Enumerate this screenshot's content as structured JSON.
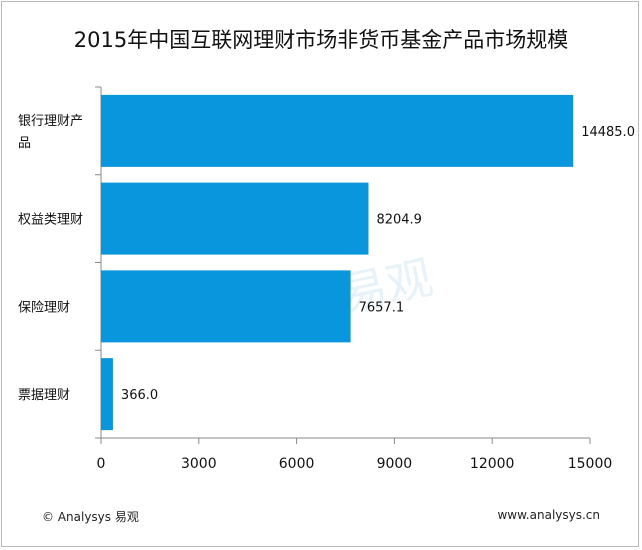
{
  "chart_data": {
    "type": "bar",
    "orientation": "horizontal",
    "title": "2015年中国互联网理财市场非货币基金产品市场规模",
    "categories": [
      "银行理财产品",
      "权益类理财",
      "保险理财",
      "票据理财"
    ],
    "category_lines": [
      [
        "银行理财产",
        "品"
      ],
      [
        "权益类理财"
      ],
      [
        "保险理财"
      ],
      [
        "票据理财"
      ]
    ],
    "values": [
      14485.0,
      8204.9,
      7657.1,
      366.0
    ],
    "value_labels": [
      "14485.0",
      "8204.9",
      "7657.1",
      "366.0"
    ],
    "xlim": [
      0,
      15000
    ],
    "xticks": [
      "0",
      "3000",
      "6000",
      "9000",
      "12000",
      "15000"
    ],
    "bar_color": "#0a96dc",
    "grid": false
  },
  "footer": {
    "copyright": "© Analysys 易观",
    "url": "www.analysys.cn"
  },
  "watermark": "易观"
}
